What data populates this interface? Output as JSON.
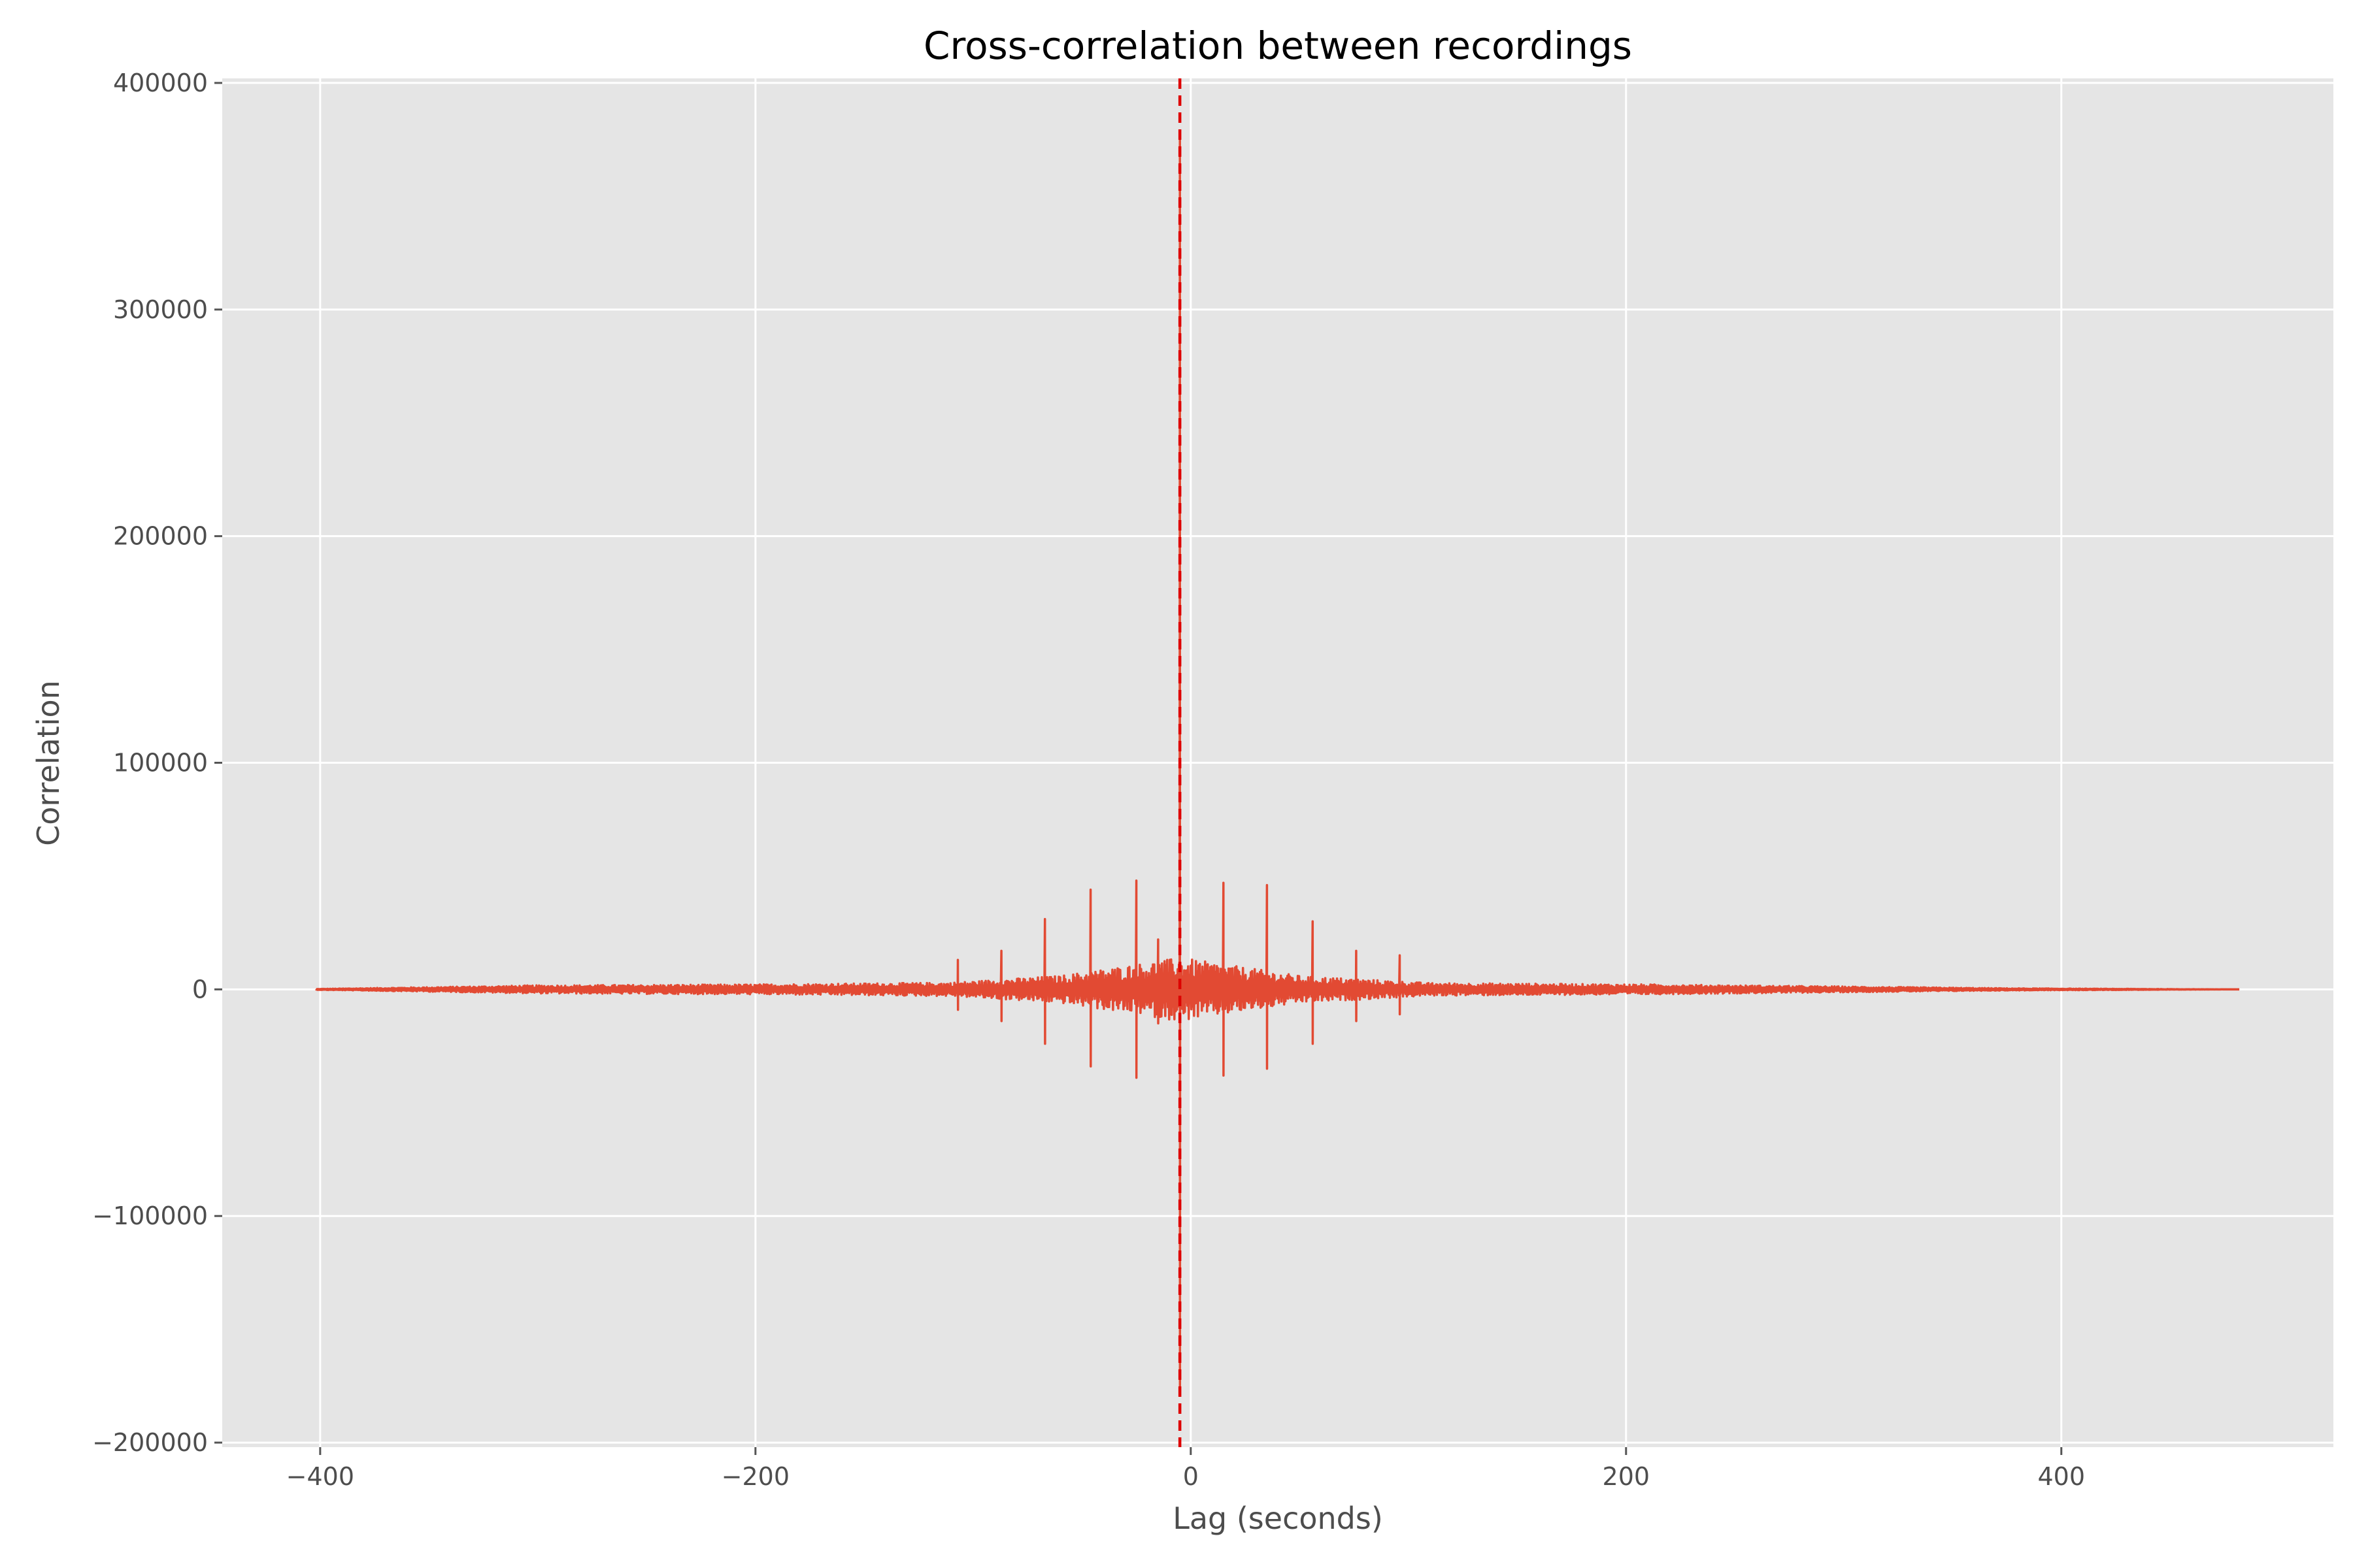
{
  "chart_data": {
    "type": "line",
    "title": "Cross-correlation between recordings",
    "xlabel": "Lag (seconds)",
    "ylabel": "Correlation",
    "xlim": [
      -445,
      525
    ],
    "ylim": [
      -202000,
      402000
    ],
    "xticks": [
      -400,
      -200,
      0,
      200,
      400
    ],
    "xtick_labels": [
      "−400",
      "−200",
      "0",
      "200",
      "400"
    ],
    "yticks": [
      -200000,
      -100000,
      0,
      100000,
      200000,
      300000,
      400000
    ],
    "ytick_labels": [
      "−200000",
      "−100000",
      "0",
      "100000",
      "200000",
      "300000",
      "400000"
    ],
    "grid": true,
    "series_color": "#e24a33",
    "marker_line_color": "#dd0000",
    "background_color": "#e5e5e5",
    "peak_lag": -5,
    "series": [
      {
        "x_range": [
          -402,
          482
        ],
        "peak": {
          "x": -5,
          "max": 375000,
          "min": -175000
        },
        "spikes": [
          {
            "x": -107,
            "max": 13000,
            "min": -9000
          },
          {
            "x": -87,
            "max": 17000,
            "min": -14000
          },
          {
            "x": -67,
            "max": 31000,
            "min": -24000
          },
          {
            "x": -46,
            "max": 44000,
            "min": -34000
          },
          {
            "x": -25,
            "max": 48000,
            "min": -39000
          },
          {
            "x": -15,
            "max": 22000,
            "min": -15000
          },
          {
            "x": 15,
            "max": 47000,
            "min": -38000
          },
          {
            "x": 35,
            "max": 46000,
            "min": -35000
          },
          {
            "x": 56,
            "max": 30000,
            "min": -24000
          },
          {
            "x": 76,
            "max": 17000,
            "min": -14000
          },
          {
            "x": 96,
            "max": 15000,
            "min": -11000
          }
        ],
        "envelope": [
          {
            "x": -402,
            "amp": 200
          },
          {
            "x": -300,
            "amp": 1800
          },
          {
            "x": -200,
            "amp": 2200
          },
          {
            "x": -110,
            "amp": 3000
          },
          {
            "x": -60,
            "amp": 6000
          },
          {
            "x": -5,
            "amp": 14000
          },
          {
            "x": 50,
            "amp": 6000
          },
          {
            "x": 110,
            "amp": 2800
          },
          {
            "x": 210,
            "amp": 2200
          },
          {
            "x": 280,
            "amp": 1500
          },
          {
            "x": 375,
            "amp": 500
          },
          {
            "x": 482,
            "amp": 0
          }
        ]
      }
    ]
  }
}
